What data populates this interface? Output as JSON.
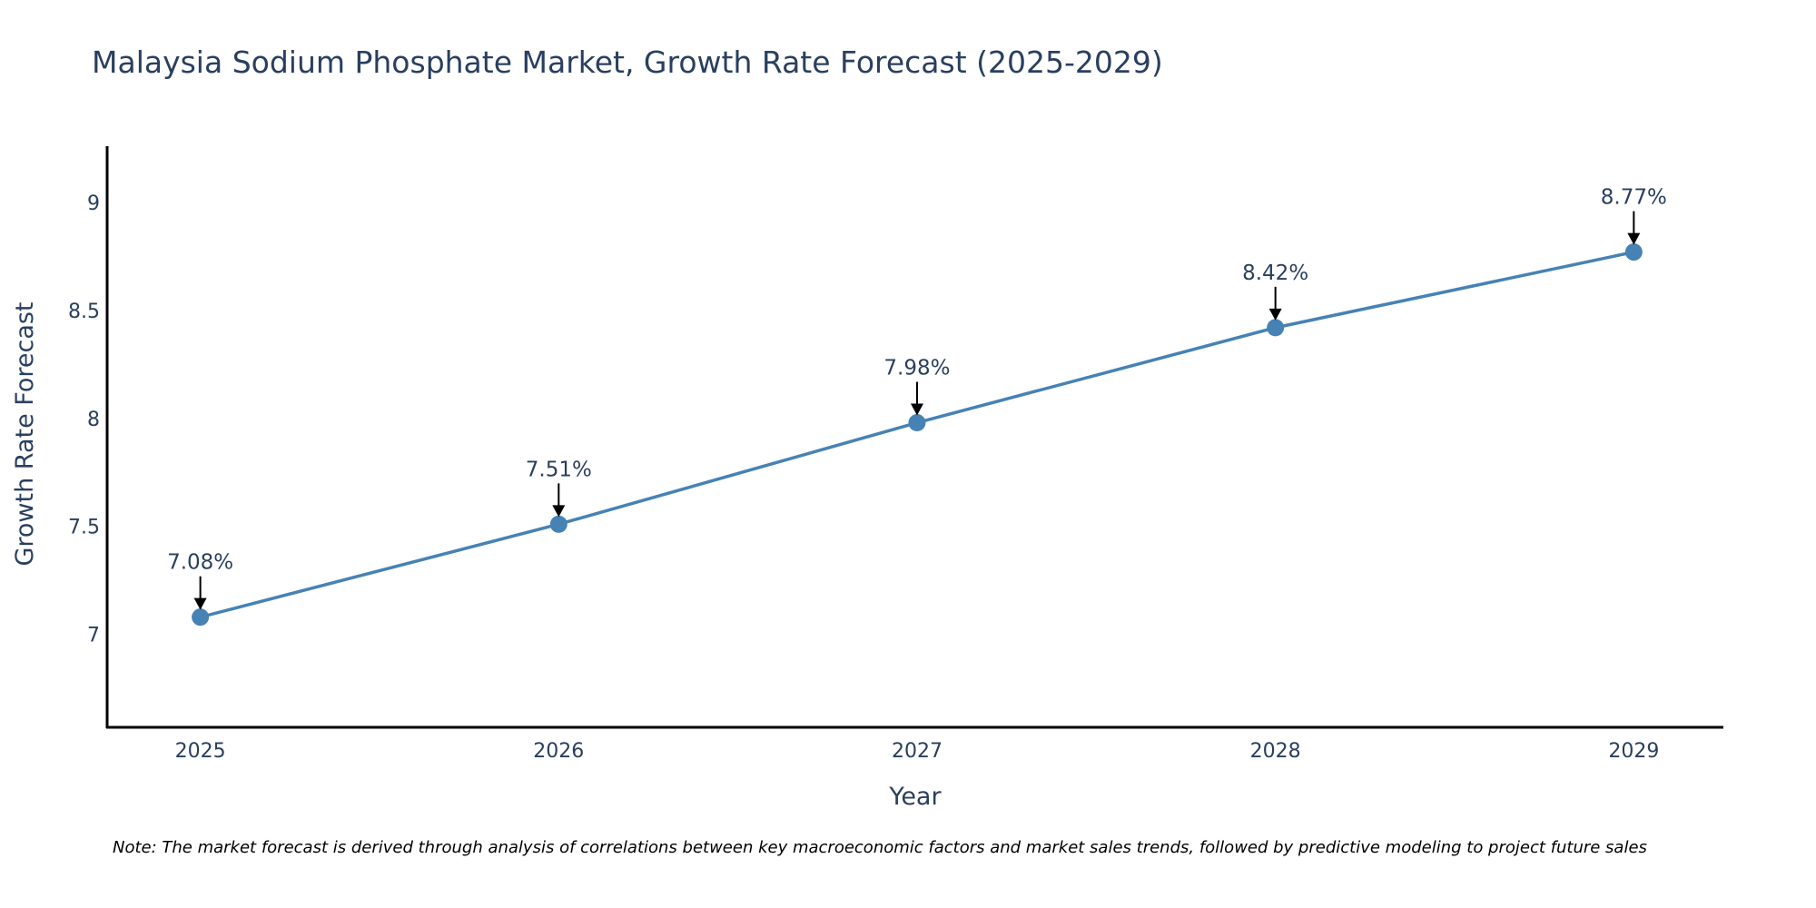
{
  "chart_data": {
    "type": "line",
    "title": "Malaysia Sodium Phosphate Market, Growth Rate Forecast (2025-2029)",
    "xlabel": "Year",
    "ylabel": "Growth Rate Forecast",
    "x": [
      2025,
      2026,
      2027,
      2028,
      2029
    ],
    "x_tick_labels": [
      "2025",
      "2026",
      "2027",
      "2028",
      "2029"
    ],
    "values": [
      7.08,
      7.51,
      7.98,
      8.42,
      8.77
    ],
    "annotations": [
      "7.08%",
      "7.51%",
      "7.98%",
      "8.42%",
      "8.77%"
    ],
    "y_ticks": [
      7,
      7.5,
      8,
      8.5,
      9
    ],
    "y_tick_labels": [
      "7",
      "7.5",
      "8",
      "8.5",
      "9"
    ],
    "ylim": [
      6.57,
      9.26
    ],
    "xlim": [
      2024.74,
      2029.25
    ],
    "grid": false,
    "legend": "none",
    "line_color": "#4682b4",
    "note": "Note: The market forecast is derived through analysis of correlations between key macroeconomic factors and market sales trends, followed by predictive modeling to project future sales"
  }
}
